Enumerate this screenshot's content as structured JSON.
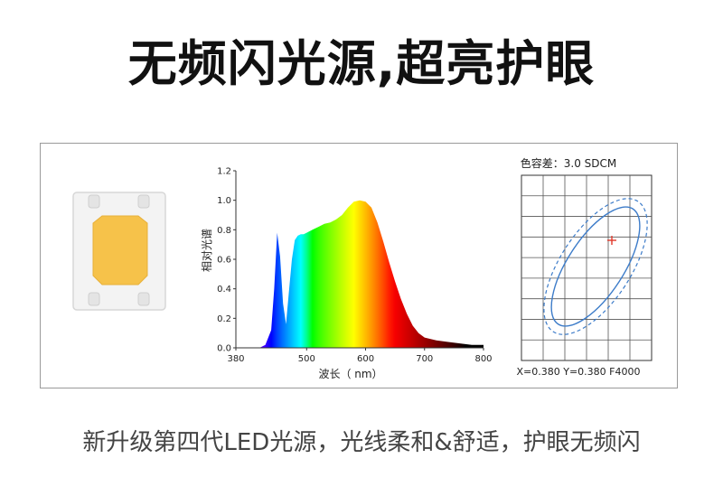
{
  "headline": "无频闪光源,超亮护眼",
  "footer": "新升级第四代LED光源，光线柔和&舒适，护眼无频闪",
  "colors": {
    "led_phosphor": "#f6c24a",
    "led_frame": "#f2f2f2",
    "ellipse": "#3d7cc9",
    "marker": "#e0392b",
    "border": "#9a9a9a"
  },
  "chart_data": [
    {
      "type": "area",
      "xlabel": "波长（ nm）",
      "ylabel": "相对光谱",
      "xlim": [
        380,
        800
      ],
      "ylim": [
        0,
        1.2
      ],
      "x_ticks": [
        380,
        500,
        600,
        700,
        800
      ],
      "y_ticks": [
        "0.0",
        "0.2",
        "0.4",
        "0.6",
        "0.8",
        "1.0",
        "1.2"
      ],
      "grid": false,
      "fill": "wavelength-colored spectrum",
      "series": [
        {
          "x": [
            380,
            420,
            430,
            440,
            445,
            450,
            455,
            460,
            465,
            470,
            475,
            480,
            485,
            490,
            495,
            500,
            510,
            520,
            530,
            540,
            550,
            560,
            570,
            580,
            590,
            600,
            610,
            620,
            630,
            640,
            650,
            660,
            670,
            680,
            690,
            700,
            720,
            740,
            760,
            780,
            800
          ],
          "y": [
            0.0,
            0.0,
            0.02,
            0.12,
            0.4,
            0.78,
            0.62,
            0.3,
            0.16,
            0.38,
            0.6,
            0.73,
            0.76,
            0.77,
            0.77,
            0.78,
            0.8,
            0.82,
            0.84,
            0.85,
            0.87,
            0.9,
            0.95,
            0.99,
            1.0,
            0.99,
            0.95,
            0.85,
            0.72,
            0.58,
            0.45,
            0.33,
            0.23,
            0.15,
            0.1,
            0.07,
            0.05,
            0.04,
            0.03,
            0.02,
            0.02
          ]
        }
      ]
    },
    {
      "type": "scatter",
      "title": "色容差：3.0 SDCM",
      "caption": "X=0.380  Y=0.380  F4000",
      "grid": true,
      "grid_cells": [
        6,
        9
      ],
      "point": {
        "x": 0.38,
        "y": 0.38
      },
      "ellipses": [
        {
          "style": "solid",
          "label": "3.0 SDCM"
        },
        {
          "style": "dashed"
        }
      ]
    }
  ]
}
